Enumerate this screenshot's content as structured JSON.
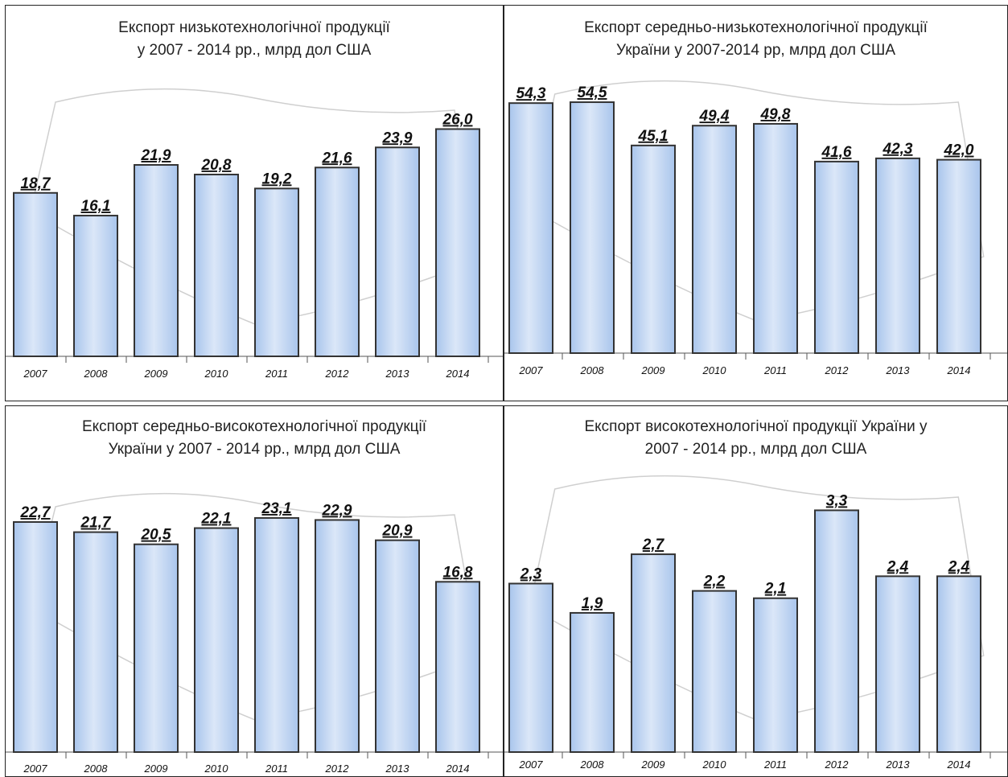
{
  "chart_data": [
    {
      "type": "bar",
      "title": "Експорт низькотехнологічної продукції\nу 2007 - 2014 рр., млрд дол США",
      "categories": [
        "2007",
        "2008",
        "2009",
        "2010",
        "2011",
        "2012",
        "2013",
        "2014"
      ],
      "values": [
        18.7,
        16.1,
        21.9,
        20.8,
        19.2,
        21.6,
        23.9,
        26.0
      ],
      "value_labels": [
        "18,7",
        "16,1",
        "21,9",
        "20,8",
        "19,2",
        "21,6",
        "23,9",
        "26,0"
      ],
      "ylim": [
        0,
        30
      ]
    },
    {
      "type": "bar",
      "title": "Експорт середньо-низькотехнологічної продукції\nУкраїни у 2007-2014 рр, млрд дол США",
      "categories": [
        "2007",
        "2008",
        "2009",
        "2010",
        "2011",
        "2012",
        "2013",
        "2014"
      ],
      "values": [
        54.3,
        54.5,
        45.1,
        49.4,
        49.8,
        41.6,
        42.3,
        42.0
      ],
      "value_labels": [
        "54,3",
        "54,5",
        "45,1",
        "49,4",
        "49,8",
        "41,6",
        "42,3",
        "42,0"
      ],
      "ylim": [
        0,
        58
      ]
    },
    {
      "type": "bar",
      "title": "Експорт середньо-високотехнологічної продукції\nУкраїни у 2007 - 2014 рр., млрд дол США",
      "categories": [
        "2007",
        "2008",
        "2009",
        "2010",
        "2011",
        "2012",
        "2013",
        "2014"
      ],
      "values": [
        22.7,
        21.7,
        20.5,
        22.1,
        23.1,
        22.9,
        20.9,
        16.8
      ],
      "value_labels": [
        "22,7",
        "21,7",
        "20,5",
        "22,1",
        "23,1",
        "22,9",
        "20,9",
        "16,8"
      ],
      "ylim": [
        0,
        25
      ]
    },
    {
      "type": "bar",
      "title": "Експорт високотехнологічної продукції України у\n2007 - 2014 рр., млрд дол США",
      "categories": [
        "2007",
        "2008",
        "2009",
        "2010",
        "2011",
        "2012",
        "2013",
        "2014"
      ],
      "values": [
        2.3,
        1.9,
        2.7,
        2.2,
        2.1,
        3.3,
        2.4,
        2.4
      ],
      "value_labels": [
        "2,3",
        "1,9",
        "2,7",
        "2,2",
        "2,1",
        "3,3",
        "2,4",
        "2,4"
      ],
      "ylim": [
        0,
        3.7
      ]
    }
  ],
  "colors": {
    "bar_fill_light": "#dbe7f8",
    "bar_fill_dark": "#a9c5ec",
    "bar_stroke": "#333333",
    "map_lines": "#cfcfcf"
  }
}
